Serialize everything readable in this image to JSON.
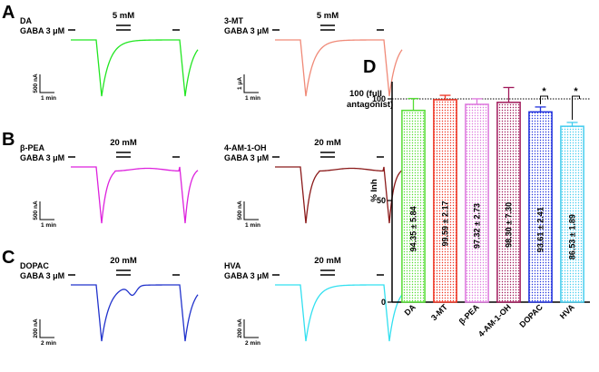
{
  "panels": {
    "A": {
      "letter": "A",
      "traces": [
        {
          "drug": "DA",
          "gaba": "GABA 3 μM",
          "conc": "5 mM",
          "scale_current": "500 nA",
          "scale_time": "1 min",
          "color": "#22e622",
          "shape": "slow"
        },
        {
          "drug": "3-MT",
          "gaba": "GABA 3 μM",
          "conc": "5 mM",
          "scale_current": "1 μA",
          "scale_time": "1 min",
          "color": "#f08a78",
          "shape": "slow"
        }
      ]
    },
    "B": {
      "letter": "B",
      "traces": [
        {
          "drug": "β-PEA",
          "gaba": "GABA 3 μM",
          "conc": "20 mM",
          "scale_current": "500 nA",
          "scale_time": "1 min",
          "color": "#dd22dd",
          "shape": "fast"
        },
        {
          "drug": "4-AM-1-OH",
          "gaba": "GABA 3 μM",
          "conc": "20 mM",
          "scale_current": "500 nA",
          "scale_time": "1 min",
          "color": "#8b1a1a",
          "shape": "fast"
        }
      ]
    },
    "C": {
      "letter": "C",
      "traces": [
        {
          "drug": "DOPAC",
          "gaba": "GABA 3 μM",
          "conc": "20 mM",
          "scale_current": "200 nA",
          "scale_time": "2 min",
          "color": "#2233cc",
          "shape": "bump"
        },
        {
          "drug": "HVA",
          "gaba": "GABA 3 μM",
          "conc": "20 mM",
          "scale_current": "200 nA",
          "scale_time": "2 min",
          "color": "#33e0f0",
          "shape": "slow"
        }
      ]
    }
  },
  "chart_panel_letter": "D",
  "chart_data": {
    "type": "bar",
    "categories": [
      "DA",
      "3-MT",
      "β-PEA",
      "4-AM-1-OH",
      "DOPAC",
      "HVA"
    ],
    "values": [
      94.35,
      99.59,
      97.32,
      98.3,
      93.61,
      86.53
    ],
    "errors": [
      5.84,
      2.17,
      2.73,
      7.3,
      2.41,
      1.89
    ],
    "value_labels": [
      "94.35 ± 5.84",
      "99.59 ± 2.17",
      "97.32 ± 2.73",
      "98.30 ± 7.30",
      "93.61 ± 2.41",
      "86.53 ± 1.89"
    ],
    "colors": [
      "#55dd33",
      "#ee3322",
      "#dd77dd",
      "#a0185a",
      "#2233dd",
      "#44ccee"
    ],
    "ylabel": "% Inh",
    "ylim": [
      0,
      100
    ],
    "yticks": [
      0,
      50,
      100
    ],
    "reference_line": {
      "value": 100,
      "label_line1": "100 (full",
      "label_line2": "antagonist)"
    },
    "significance": [
      {
        "category": "DOPAC",
        "mark": "*"
      },
      {
        "category": "HVA",
        "mark": "*"
      }
    ],
    "grid": false
  }
}
